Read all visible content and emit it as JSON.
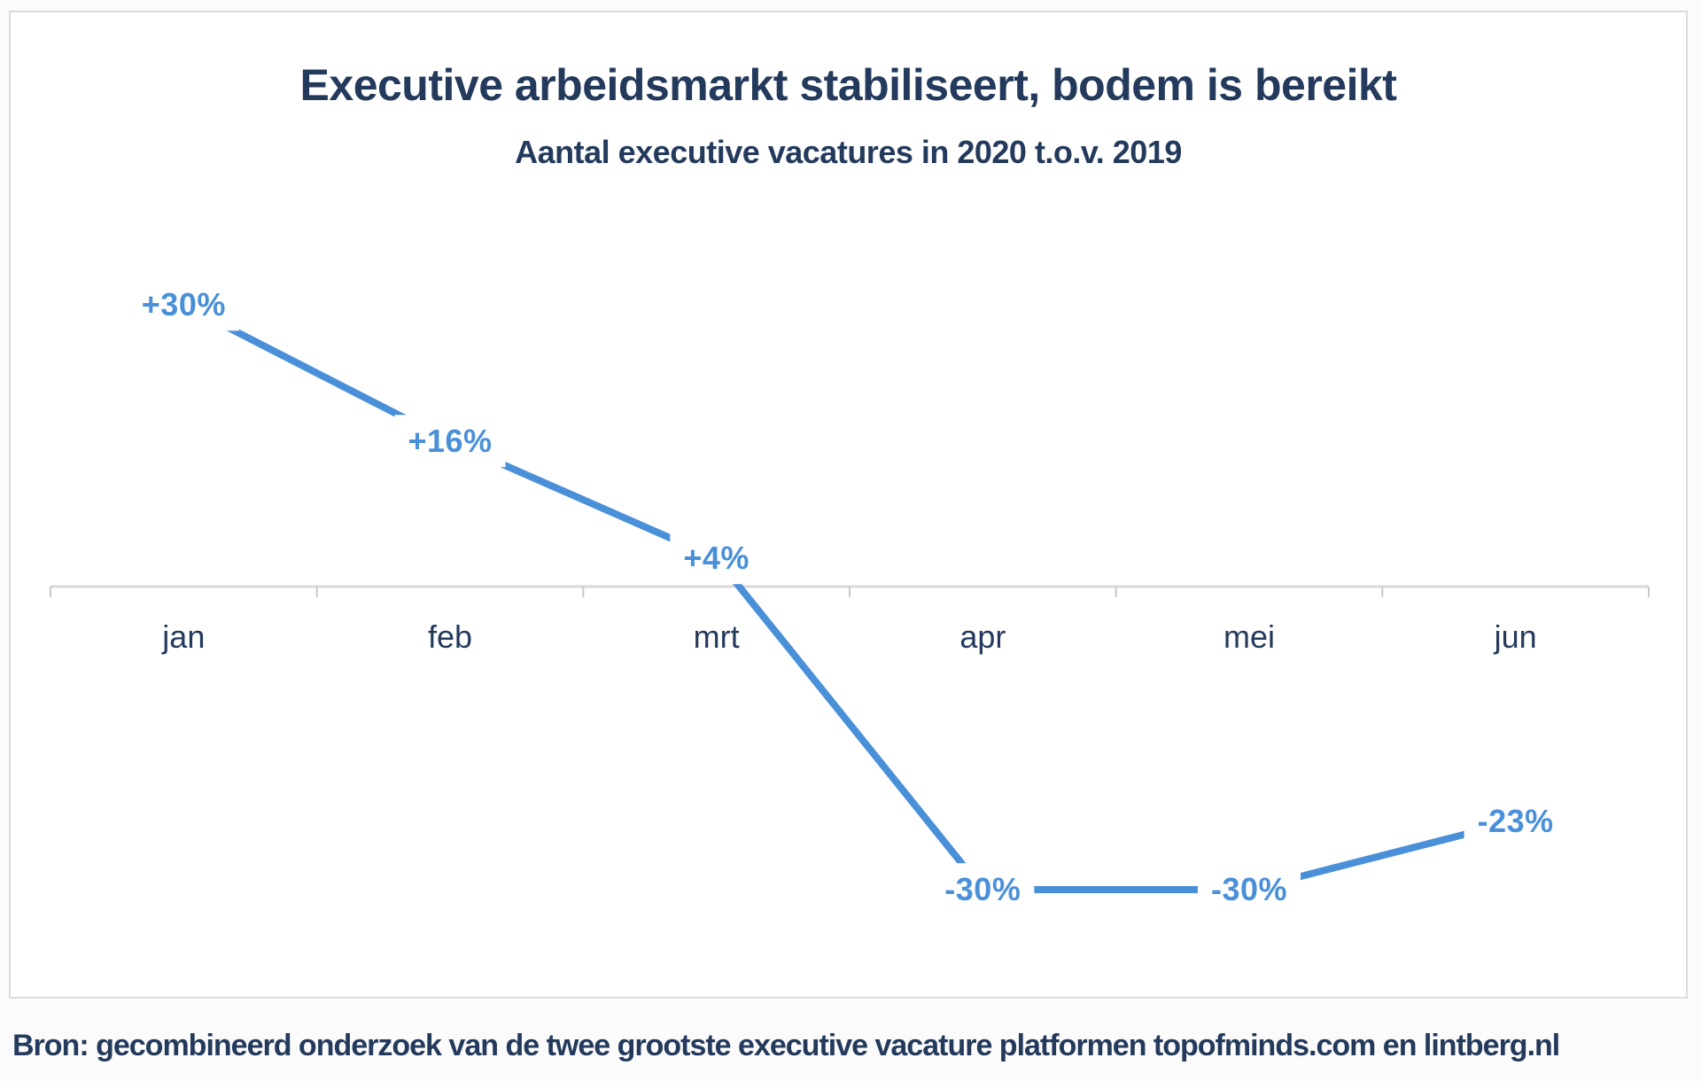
{
  "header": {
    "title": "Executive arbeidsmarkt stabiliseert, bodem is bereikt",
    "subtitle": "Aantal executive vacatures in 2020 t.o.v. 2019"
  },
  "footer": {
    "source": "Bron: gecombineerd onderzoek van de twee grootste executive vacature platformen topofminds.com en lintberg.nl"
  },
  "colors": {
    "navy_text": "#243a5c",
    "line_blue": "#4a90d9",
    "axis_gray": "#d8d8d8",
    "tick_gray": "#c9c9c9",
    "label_halo": "#ffffff",
    "card_background": "#ffffff",
    "card_border": "#dcdcdc",
    "page_background": "#fbfbfb"
  },
  "chart_data": {
    "type": "line",
    "title": "Executive arbeidsmarkt stabiliseert, bodem is bereikt",
    "subtitle": "Aantal executive vacatures in 2020 t.o.v. 2019",
    "categories": [
      "jan",
      "feb",
      "mrt",
      "apr",
      "mei",
      "jun"
    ],
    "series": [
      {
        "name": "Aantal executive vacatures in 2020 t.o.v. 2019",
        "values": [
          30,
          16,
          4,
          -30,
          -30,
          -23
        ],
        "point_labels": [
          "+30%",
          "+16%",
          "+4%",
          "-30%",
          "-30%",
          "-23%"
        ]
      }
    ],
    "unit": "%",
    "ylim": [
      -40,
      38
    ],
    "xlabel": "",
    "ylabel": "",
    "grid": false,
    "legend": false,
    "y_axis_visible": false,
    "x_axis": {
      "position_value": 0,
      "tick_style": "segment-boundaries",
      "tick_count": 7
    }
  }
}
